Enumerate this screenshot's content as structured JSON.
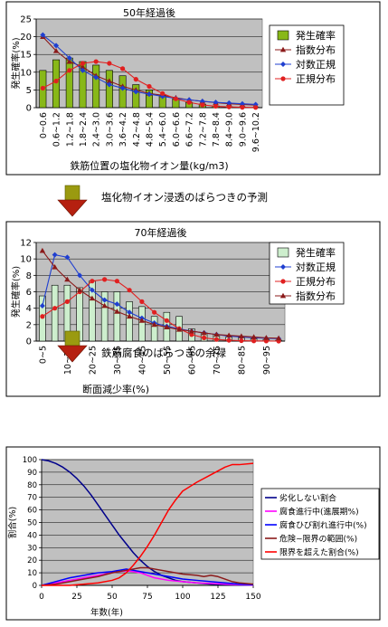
{
  "step1_text": "塩化物イオン浸透のばらつきの予測",
  "step2_text": "鉄筋腐食のばらつきの余禄",
  "chart_data": [
    {
      "type": "bar",
      "title": "50年経過後",
      "xlabel": "鉄筋位置の塩化物イオン量(kg/m3)",
      "ylabel": "発生確率(%)",
      "ylim": [
        0,
        25
      ],
      "yticks": [
        0,
        5,
        10,
        15,
        20,
        25
      ],
      "grid": true,
      "legend_position": "right",
      "categories": [
        "0~0.6",
        "0.6~1.2",
        "1.2~1.8",
        "1.8~2.4",
        "2.4~3.0",
        "3.0~3.6",
        "3.6~4.2",
        "4.2~4.8",
        "4.8~5.4",
        "5.4~6.0",
        "6.0~6.6",
        "6.6~7.2",
        "7.2~7.8",
        "7.8~8.4",
        "8.4~9.0",
        "9.0~9.6",
        "9.6~10.2"
      ],
      "tick_labels": [
        "0~0.6",
        "0.6~1.2",
        "1.2~1.8",
        "1.8~2.4",
        "2.4~3.0",
        "3.0~3.6",
        "3.6~4.2",
        "4.2~4.8",
        "4.8~5.4",
        "5.4~6.0",
        "6.0~6.6",
        "6.6~7.2",
        "7.2~7.8",
        "7.8~8.4",
        "8.4~9.0",
        "9.0~9.6",
        "9.6~10.2"
      ],
      "series": [
        {
          "name": "発生確率",
          "kind": "bar",
          "color": "#88b818",
          "values": [
            10.5,
            13.5,
            14.0,
            13.0,
            12.0,
            10.5,
            9.0,
            6.5,
            5.0,
            3.5,
            2.5,
            1.5,
            1.0,
            0.5,
            0.3,
            0.2,
            0.1
          ]
        },
        {
          "name": "指数分布",
          "kind": "line",
          "color": "#8b1a1a",
          "marker": "triangle",
          "values": [
            20.0,
            16.0,
            13.0,
            11.5,
            9.0,
            7.5,
            6.0,
            5.0,
            4.0,
            3.5,
            2.8,
            2.2,
            1.8,
            1.4,
            1.1,
            0.9,
            0.7
          ]
        },
        {
          "name": "対数正規",
          "kind": "line",
          "color": "#1f3fd0",
          "marker": "diamond",
          "values": [
            20.5,
            17.5,
            14.0,
            10.5,
            8.5,
            6.5,
            5.5,
            4.5,
            3.8,
            3.2,
            2.6,
            2.2,
            1.8,
            1.5,
            1.3,
            1.1,
            0.9
          ]
        },
        {
          "name": "正規分布",
          "kind": "line",
          "color": "#e02020",
          "marker": "circle",
          "values": [
            5.5,
            7.5,
            10.5,
            12.5,
            13.0,
            12.5,
            11.0,
            8.0,
            6.0,
            4.0,
            2.5,
            1.5,
            0.8,
            0.4,
            0.2,
            0.1,
            0.05
          ]
        }
      ]
    },
    {
      "type": "bar",
      "title": "70年経過後",
      "xlabel": "断面減少率(%)",
      "ylabel": "発生確率(%)",
      "ylim": [
        0,
        12
      ],
      "yticks": [
        0,
        2,
        4,
        6,
        8,
        10,
        12
      ],
      "grid": true,
      "legend_position": "right",
      "categories": [
        "0~5",
        "5~10",
        "10~15",
        "15~20",
        "20~25",
        "25~30",
        "30~35",
        "35~40",
        "40~45",
        "45~50",
        "50~55",
        "55~60",
        "60~65",
        "65~70",
        "70~75",
        "75~80",
        "80~85",
        "85~90",
        "90~95",
        "95~100"
      ],
      "tick_labels": [
        "0~5",
        "",
        "10~15",
        "",
        "20~25",
        "",
        "30~35",
        "",
        "40~45",
        "",
        "50~55",
        "",
        "60~65",
        "",
        "70~75",
        "",
        "80~85",
        "",
        "90~95",
        ""
      ],
      "series": [
        {
          "name": "発生確率",
          "kind": "bar",
          "color": "#cdeecd",
          "values": [
            5.5,
            6.8,
            6.8,
            6.5,
            7.3,
            6.0,
            6.0,
            4.8,
            4.2,
            3.0,
            3.5,
            3.0,
            1.5,
            1.0,
            0.8,
            0.5,
            0.5,
            0.3,
            0.2,
            0.1
          ]
        },
        {
          "name": "対数正規",
          "kind": "line",
          "color": "#1f3fd0",
          "marker": "diamond",
          "values": [
            4.3,
            10.5,
            10.2,
            8.0,
            6.2,
            5.0,
            4.5,
            3.5,
            2.8,
            2.2,
            1.8,
            1.5,
            1.2,
            1.0,
            0.8,
            0.6,
            0.5,
            0.4,
            0.35,
            0.3
          ]
        },
        {
          "name": "正規分布",
          "kind": "line",
          "color": "#e02020",
          "marker": "circle",
          "values": [
            3.0,
            4.0,
            4.8,
            6.0,
            7.3,
            7.5,
            7.3,
            6.2,
            4.8,
            3.5,
            2.5,
            1.5,
            0.8,
            0.4,
            0.2,
            0.1,
            0.05,
            0.02,
            0.01,
            0.0
          ]
        },
        {
          "name": "指数分布",
          "kind": "line",
          "color": "#8b1a1a",
          "marker": "triangle",
          "values": [
            11.0,
            9.0,
            7.5,
            6.2,
            5.2,
            4.3,
            3.6,
            3.0,
            2.5,
            2.0,
            1.7,
            1.4,
            1.2,
            1.0,
            0.8,
            0.7,
            0.6,
            0.5,
            0.4,
            0.35
          ]
        }
      ]
    },
    {
      "type": "line",
      "title": "",
      "xlabel": "年数(年)",
      "ylabel": "割合(%)",
      "xlim": [
        0,
        150
      ],
      "ylim": [
        0,
        100
      ],
      "xticks": [
        0,
        25,
        50,
        75,
        100,
        125,
        150
      ],
      "yticks": [
        0,
        10,
        20,
        30,
        40,
        50,
        60,
        70,
        80,
        90,
        100
      ],
      "grid": true,
      "legend_position": "right",
      "series": [
        {
          "name": "劣化しない割合",
          "color": "#00008b",
          "x": [
            0,
            5,
            10,
            15,
            20,
            25,
            30,
            35,
            40,
            45,
            50,
            55,
            60,
            65,
            70,
            75,
            80,
            85,
            90,
            95,
            100,
            110,
            120,
            130,
            140,
            150
          ],
          "y": [
            100,
            99,
            97,
            94,
            90,
            85,
            79,
            72,
            64,
            56,
            48,
            40,
            33,
            26,
            20,
            15,
            11,
            8,
            6,
            4,
            3,
            2,
            1,
            0.5,
            0.3,
            0.2
          ]
        },
        {
          "name": "腐食進行中(進展期%)",
          "color": "#ff00ff",
          "x": [
            0,
            10,
            20,
            30,
            40,
            50,
            55,
            60,
            65,
            70,
            75,
            80,
            90,
            100,
            110,
            120,
            130,
            140,
            150
          ],
          "y": [
            0,
            2,
            4,
            6,
            8,
            10,
            11,
            11.5,
            11,
            10,
            8,
            6,
            4,
            3,
            2,
            1.5,
            1,
            0.5,
            0.3
          ]
        },
        {
          "name": "腐食ひび割れ進行中(%)",
          "color": "#0000ff",
          "x": [
            0,
            10,
            20,
            30,
            40,
            50,
            55,
            60,
            65,
            70,
            75,
            80,
            90,
            100,
            110,
            120,
            130,
            140,
            150
          ],
          "y": [
            0,
            3,
            6,
            8,
            10,
            11,
            12,
            13,
            12,
            11,
            10,
            9,
            7,
            5,
            4,
            3,
            2,
            1,
            0.5
          ]
        },
        {
          "name": "危険~限界の範囲(%)",
          "color": "#8b1a1a",
          "x": [
            0,
            10,
            20,
            30,
            40,
            50,
            60,
            65,
            70,
            75,
            80,
            90,
            100,
            110,
            115,
            120,
            125,
            130,
            135,
            140,
            150
          ],
          "y": [
            0,
            1,
            3,
            5,
            7,
            10,
            12,
            13,
            14,
            14,
            13,
            11,
            9,
            8,
            7,
            8,
            7,
            5,
            3,
            2,
            1
          ]
        },
        {
          "name": "限界を超えた割合(%)",
          "color": "#ff0000",
          "x": [
            0,
            20,
            30,
            40,
            50,
            55,
            60,
            65,
            70,
            75,
            80,
            85,
            90,
            95,
            100,
            110,
            120,
            130,
            135,
            140,
            150
          ],
          "y": [
            0,
            0,
            1,
            2,
            4,
            6,
            10,
            16,
            23,
            31,
            40,
            50,
            60,
            68,
            75,
            82,
            88,
            94,
            96,
            96,
            97
          ]
        }
      ]
    }
  ]
}
